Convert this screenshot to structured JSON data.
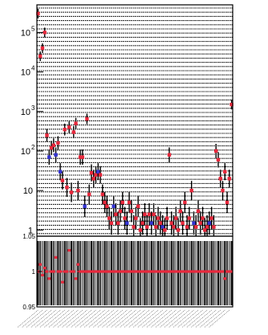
{
  "chart_data": [
    {
      "type": "scatter",
      "panel": "upper",
      "scale": {
        "y": "log"
      },
      "ylim": [
        0.7,
        500000
      ],
      "y_tick_labels": [
        {
          "base": "10",
          "exp": "5"
        },
        {
          "base": "10",
          "exp": "4"
        },
        {
          "base": "10",
          "exp": "3"
        },
        {
          "base": "10",
          "exp": "2"
        },
        {
          "base": "10",
          "exp": ""
        },
        {
          "base": "1",
          "exp": ""
        }
      ],
      "grid": "dashed horizontal",
      "colors": {
        "red_series": "#e8283c",
        "blue_series": "#3232d2",
        "error_bars": "#000000"
      },
      "x_count": 88,
      "points": [
        [
          0,
          300000,
          0
        ],
        [
          1,
          25000,
          0
        ],
        [
          2,
          40000,
          0
        ],
        [
          3,
          100000,
          0
        ],
        [
          4,
          250,
          0
        ],
        [
          5,
          70,
          1
        ],
        [
          6,
          120,
          0
        ],
        [
          7,
          140,
          0
        ],
        [
          8,
          80,
          1
        ],
        [
          9,
          160,
          0
        ],
        [
          10,
          30,
          1
        ],
        [
          11,
          18,
          0
        ],
        [
          12,
          350,
          0
        ],
        [
          13,
          12,
          0
        ],
        [
          14,
          400,
          0
        ],
        [
          15,
          9,
          0
        ],
        [
          16,
          300,
          0
        ],
        [
          17,
          500,
          0
        ],
        [
          18,
          10,
          0
        ],
        [
          19,
          70,
          0
        ],
        [
          20,
          70,
          0
        ],
        [
          21,
          4,
          1
        ],
        [
          22,
          650,
          0
        ],
        [
          23,
          8,
          0
        ],
        [
          24,
          28,
          0
        ],
        [
          25,
          20,
          0
        ],
        [
          26,
          25,
          0
        ],
        [
          27,
          30,
          1
        ],
        [
          28,
          25,
          0
        ],
        [
          29,
          8,
          0
        ],
        [
          30,
          5,
          0
        ],
        [
          31,
          4,
          0
        ],
        [
          32,
          2,
          0
        ],
        [
          33,
          1.5,
          0
        ],
        [
          34,
          4,
          1
        ],
        [
          35,
          2.5,
          0
        ],
        [
          36,
          1.5,
          0
        ],
        [
          37,
          3,
          0
        ],
        [
          38,
          5,
          0
        ],
        [
          39,
          2,
          0
        ],
        [
          40,
          1.5,
          1
        ],
        [
          41,
          5,
          0
        ],
        [
          42,
          3,
          0
        ],
        [
          43,
          1.2,
          0
        ],
        [
          44,
          2,
          0
        ],
        [
          45,
          4,
          0
        ],
        [
          46,
          1,
          0
        ],
        [
          47,
          1.5,
          0
        ],
        [
          48,
          2.5,
          0
        ],
        [
          49,
          1.2,
          0
        ],
        [
          50,
          2.5,
          0
        ],
        [
          51,
          1.5,
          1
        ],
        [
          52,
          2.5,
          0
        ],
        [
          53,
          1.2,
          0
        ],
        [
          54,
          2,
          0
        ],
        [
          55,
          1.5,
          0
        ],
        [
          56,
          1.2,
          1
        ],
        [
          57,
          1,
          0
        ],
        [
          58,
          2,
          0
        ],
        [
          59,
          80,
          0
        ],
        [
          60,
          1.5,
          0
        ],
        [
          61,
          1.2,
          0
        ],
        [
          62,
          2,
          0
        ],
        [
          63,
          1,
          0
        ],
        [
          64,
          3,
          0
        ],
        [
          65,
          1.5,
          0
        ],
        [
          66,
          5,
          0
        ],
        [
          67,
          1.2,
          0
        ],
        [
          68,
          2,
          0
        ],
        [
          69,
          10,
          0
        ],
        [
          70,
          1.5,
          1
        ],
        [
          71,
          1.2,
          0
        ],
        [
          72,
          3,
          0
        ],
        [
          73,
          1.5,
          0
        ],
        [
          74,
          2,
          0
        ],
        [
          75,
          1,
          0
        ],
        [
          76,
          1.2,
          0
        ],
        [
          77,
          1.5,
          1
        ],
        [
          78,
          2,
          0
        ],
        [
          79,
          1.2,
          0
        ],
        [
          80,
          100,
          0
        ],
        [
          81,
          60,
          0
        ],
        [
          82,
          20,
          0
        ],
        [
          83,
          10,
          0
        ],
        [
          84,
          30,
          0
        ],
        [
          85,
          5,
          0
        ],
        [
          86,
          20,
          0
        ],
        [
          87,
          1500,
          0
        ]
      ]
    },
    {
      "type": "scatter",
      "panel": "lower-ratio",
      "ylim": [
        0.95,
        1.05
      ],
      "y_tick_labels": [
        "1.05",
        "1",
        "0.95"
      ],
      "reference_line": 1,
      "ratio_values": [
        1.0,
        1.01,
        0.995,
        1.005,
        1.0,
        0.99,
        1.0,
        1.0,
        1.02,
        1.0,
        1.0,
        0.985,
        1.0,
        1.0,
        1.03,
        1.0,
        1.0,
        0.99,
        1.01,
        1.0,
        1.0,
        1.0,
        1.0,
        1.0,
        1.0,
        1.0,
        1.0,
        1.0,
        1.0,
        1.0,
        1.0,
        1.0,
        1.0,
        1.0,
        1.0,
        1.0,
        1.0,
        1.0,
        1.0,
        1.0,
        1.0,
        1.0,
        1.0,
        1.0,
        1.0,
        1.0,
        1.0,
        1.0,
        1.0,
        1.0,
        1.0,
        1.0,
        1.0,
        1.0,
        1.0,
        1.0,
        1.0,
        1.0,
        1.0,
        1.0,
        1.0,
        1.0,
        1.0,
        1.0,
        1.0,
        1.0,
        1.0,
        1.0,
        1.0,
        1.0,
        1.0,
        1.0,
        1.0,
        1.0,
        1.0,
        1.0,
        1.0,
        1.0,
        1.0,
        1.0,
        1.0,
        1.0,
        1.0,
        1.0,
        0.99,
        1.0,
        1.0,
        1.0
      ],
      "x_tick_labels": "illegible rotated bin labels"
    }
  ]
}
